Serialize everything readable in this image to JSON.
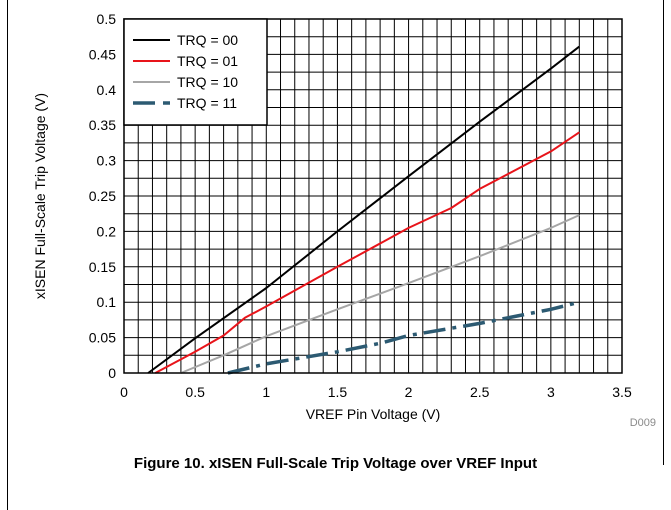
{
  "caption": "Figure 10. xISEN Full-Scale Trip Voltage over VREF Input",
  "figure_id": "D009",
  "chart_data": {
    "type": "line",
    "xlabel": "VREF Pin Voltage (V)",
    "ylabel": "xISEN Full-Scale Trip Voltage (V)",
    "xlim": [
      0,
      3.5
    ],
    "ylim": [
      0,
      0.5
    ],
    "x_ticks": [
      "0",
      "0.5",
      "1",
      "1.5",
      "2",
      "2.5",
      "3",
      "3.5"
    ],
    "y_ticks": [
      "0",
      "0.05",
      "0.1",
      "0.15",
      "0.2",
      "0.25",
      "0.3",
      "0.35",
      "0.4",
      "0.45",
      "0.5"
    ],
    "grid": true,
    "legend_position": "top-left",
    "series": [
      {
        "name": "TRQ = 00",
        "color": "#000000",
        "style": "solid",
        "x": [
          0.17,
          0.5,
          1.0,
          1.5,
          2.0,
          2.5,
          3.0,
          3.2
        ],
        "y": [
          0,
          0.049,
          0.12,
          0.2,
          0.278,
          0.355,
          0.43,
          0.461
        ]
      },
      {
        "name": "TRQ = 01",
        "color": "#e8141a",
        "style": "solid",
        "x": [
          0.22,
          0.5,
          0.7,
          0.85,
          1.0,
          1.5,
          2.0,
          2.3,
          2.5,
          3.0,
          3.2
        ],
        "y": [
          0,
          0.03,
          0.053,
          0.078,
          0.094,
          0.15,
          0.205,
          0.233,
          0.26,
          0.313,
          0.34
        ]
      },
      {
        "name": "TRQ = 10",
        "color": "#a6a6a6",
        "style": "solid",
        "x": [
          0.4,
          0.7,
          1.0,
          1.5,
          2.0,
          2.5,
          3.0,
          3.2
        ],
        "y": [
          0,
          0.025,
          0.052,
          0.09,
          0.127,
          0.165,
          0.205,
          0.223
        ]
      },
      {
        "name": "TRQ = 11",
        "color": "#2c5a72",
        "style": "dashed",
        "x": [
          0.73,
          1.0,
          1.5,
          1.8,
          2.0,
          2.5,
          3.0,
          3.2
        ],
        "y": [
          0,
          0.013,
          0.03,
          0.042,
          0.053,
          0.07,
          0.09,
          0.1
        ]
      }
    ]
  }
}
